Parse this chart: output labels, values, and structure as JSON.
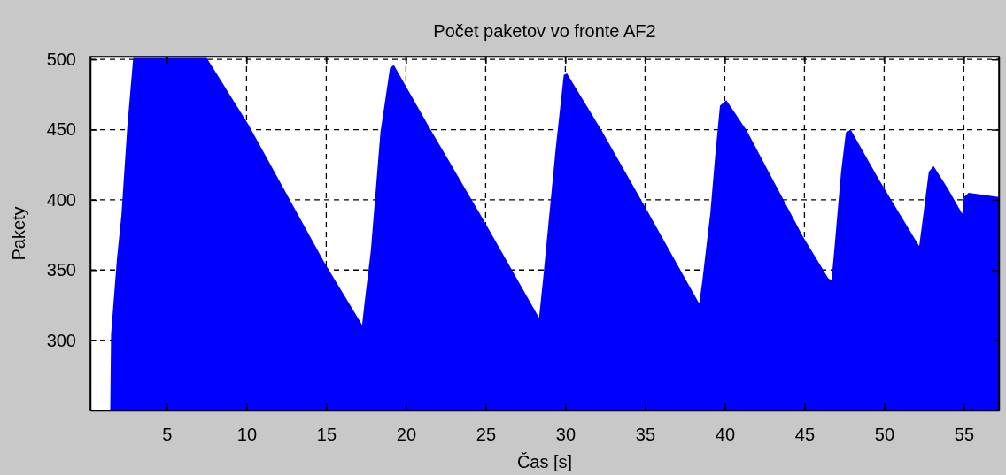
{
  "chart_data": {
    "type": "area",
    "title": "Počet paketov vo fronte AF2",
    "xlabel": "Čas [s]",
    "ylabel": "Pakety",
    "xlim": [
      0.2,
      57.2
    ],
    "ylim": [
      250,
      502
    ],
    "xticks": [
      5,
      10,
      15,
      20,
      25,
      30,
      35,
      40,
      45,
      50,
      55
    ],
    "yticks": [
      300,
      350,
      400,
      450,
      500
    ],
    "grid": true,
    "series": [
      {
        "color": "#0000ff",
        "x": [
          1.45,
          1.5,
          1.87,
          2.15,
          2.52,
          2.89,
          7.5,
          10.1,
          14.9,
          17.25,
          17.4,
          17.8,
          18.4,
          19.0,
          19.24,
          21.6,
          24.9,
          28.35,
          28.6,
          29.4,
          29.9,
          30.1,
          32.3,
          35.1,
          38.4,
          38.6,
          39.1,
          39.4,
          39.7,
          40.1,
          41.4,
          44.9,
          46.5,
          46.7,
          46.9,
          47.3,
          47.6,
          47.9,
          49.7,
          52.2,
          52.5,
          52.8,
          53.1,
          54.0,
          54.9,
          55.0,
          55.3,
          57.2
        ],
        "values": [
          251,
          304,
          358,
          389,
          452,
          501,
          501,
          454,
          355,
          311,
          326,
          364,
          448,
          494,
          496,
          449,
          385,
          316,
          343,
          437,
          489,
          490,
          449,
          393,
          326,
          343,
          391,
          431,
          467,
          471,
          449,
          374,
          344,
          343,
          368,
          420,
          448,
          450,
          414,
          367,
          393,
          420,
          424,
          408,
          390,
          402,
          405,
          402
        ]
      }
    ]
  }
}
